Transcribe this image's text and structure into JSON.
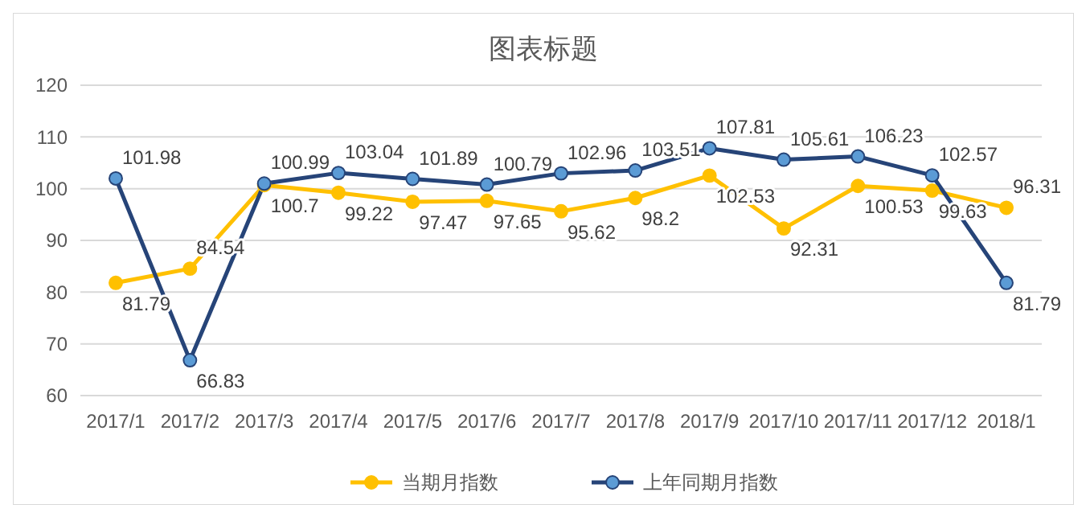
{
  "chart_data": {
    "type": "line",
    "title": "图表标题",
    "categories": [
      "2017/1",
      "2017/2",
      "2017/3",
      "2017/4",
      "2017/5",
      "2017/6",
      "2017/7",
      "2017/8",
      "2017/9",
      "2017/10",
      "2017/11",
      "2017/12",
      "2018/1"
    ],
    "series": [
      {
        "name": "当期月指数",
        "color": "#ffc000",
        "values": [
          81.79,
          84.54,
          100.7,
          99.22,
          97.47,
          97.65,
          95.62,
          98.2,
          102.53,
          92.31,
          100.53,
          99.63,
          96.31
        ]
      },
      {
        "name": "上年同期月指数",
        "color": "#264478",
        "values": [
          101.98,
          66.83,
          100.99,
          103.04,
          101.89,
          100.79,
          102.96,
          103.51,
          107.81,
          105.61,
          106.23,
          102.57,
          81.79
        ]
      }
    ],
    "ylim": [
      60,
      120
    ],
    "yticks": [
      60,
      70,
      80,
      90,
      100,
      110,
      120
    ],
    "grid": "y",
    "legend": "bottom",
    "marker": "circle",
    "data_labels": true
  }
}
